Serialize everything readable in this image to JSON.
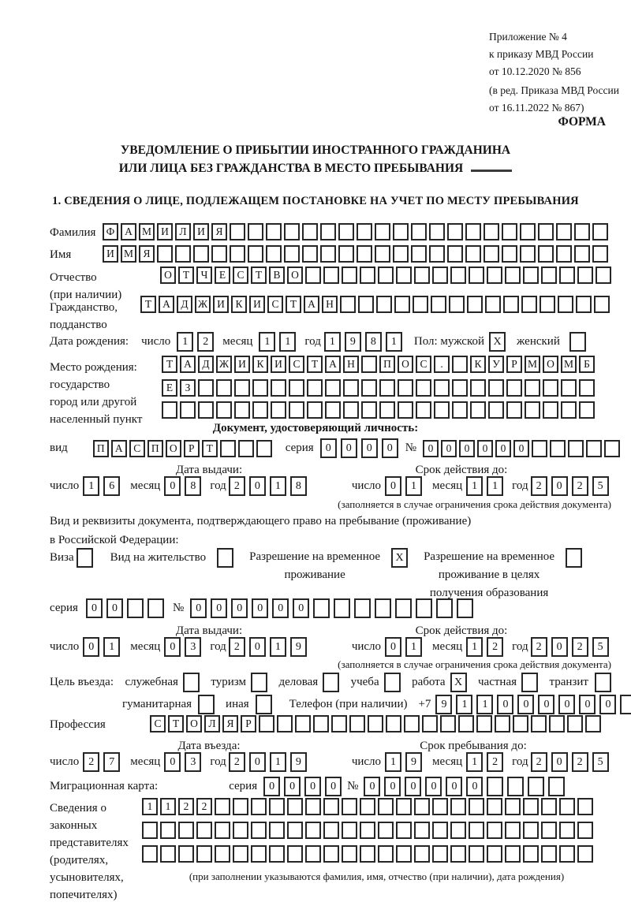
{
  "header": {
    "appendix": [
      "Приложение № 4",
      "к приказу МВД России",
      "от 10.12.2020 № 856"
    ],
    "edition": [
      "(в ред. Приказа МВД России",
      "от 16.11.2022 № 867)"
    ],
    "form_label": "ФОРМА"
  },
  "title": {
    "line1": "УВЕДОМЛЕНИЕ О ПРИБЫТИИ ИНОСТРАННОГО ГРАЖДАНИНА",
    "line2": "ИЛИ ЛИЦА БЕЗ ГРАЖДАНСТВА В МЕСТО ПРЕБЫВАНИЯ"
  },
  "section1_heading": "1. СВЕДЕНИЯ О ЛИЦЕ, ПОДЛЕЖАЩЕМ ПОСТАНОВКЕ НА УЧЕТ ПО МЕСТУ ПРЕБЫВАНИЯ",
  "date_labels": {
    "day": "число",
    "month": "месяц",
    "year": "год"
  },
  "fields": {
    "surname": {
      "label": "Фамилия",
      "value": "ФАМИЛИЯ",
      "cells": 28
    },
    "given_name": {
      "label": "Имя",
      "value": "ИМЯ",
      "cells": 28
    },
    "patronymic": {
      "label": "Отчество",
      "label2": "(при наличии)",
      "value": "ОТЧЕСТВО",
      "cells": 25
    },
    "citizenship": {
      "label": "Гражданство,",
      "label2": "подданство",
      "value": "ТАДЖИКИСТАН",
      "cells": 26
    },
    "birth_date": {
      "label": "Дата рождения:",
      "day": "12",
      "month": "11",
      "year": "1981",
      "sex_label": "Пол: мужской",
      "male_mark": "X",
      "female_label": "женский",
      "female_mark": ""
    },
    "birth_place": {
      "labels": [
        "Место рождения:",
        "государство",
        "город или другой",
        "населенный пункт"
      ],
      "row1": {
        "value": "ТАДЖИКИСТАН ПОС. КУРМОМБ",
        "cells": 24
      },
      "row2": {
        "value": "ЕЗ",
        "cells": 24
      },
      "row3": {
        "value": "",
        "cells": 24
      }
    }
  },
  "identity_doc": {
    "heading": "Документ, удостоверяющий личность:",
    "kind_label": "вид",
    "kind": {
      "value": "ПАСПОРТ",
      "cells": 10
    },
    "series_label": "серия",
    "series": {
      "value": "0000",
      "cells": 4
    },
    "number_label": "№",
    "number": {
      "value": "000000",
      "cells": 11
    },
    "issue_label": "Дата выдачи:",
    "issue": {
      "day": "16",
      "month": "08",
      "year": "2018"
    },
    "expiry_label": "Срок действия до:",
    "expiry": {
      "day": "01",
      "month": "11",
      "year": "2025"
    },
    "note": "(заполняется в случае ограничения срока действия документа)"
  },
  "residence_doc": {
    "intro1": "Вид и реквизиты документа, подтверждающего право на пребывание (проживание)",
    "intro2": "в Российской Федерации:",
    "options": [
      {
        "label": "Виза",
        "mark": ""
      },
      {
        "label": "Вид на жительство",
        "mark": ""
      },
      {
        "lines": [
          "Разрешение на временное",
          "проживание"
        ],
        "mark": "X"
      },
      {
        "lines": [
          "Разрешение на временное",
          "проживание в целях",
          "получения образования"
        ],
        "mark": ""
      }
    ],
    "series_label": "серия",
    "series": {
      "value": "00",
      "cells": 4
    },
    "number_label": "№",
    "number": {
      "value": "000000",
      "cells": 14
    },
    "issue_label": "Дата выдачи:",
    "issue": {
      "day": "01",
      "month": "03",
      "year": "2019"
    },
    "expiry_label": "Срок действия до:",
    "expiry": {
      "day": "01",
      "month": "12",
      "year": "2025"
    },
    "note": "(заполняется в случае ограничения срока действия документа)"
  },
  "entry": {
    "purpose_label": "Цель въезда:",
    "purposes_row1": [
      {
        "label": "служебная",
        "mark": ""
      },
      {
        "label": "туризм",
        "mark": ""
      },
      {
        "label": "деловая",
        "mark": ""
      },
      {
        "label": "учеба",
        "mark": ""
      },
      {
        "label": "работа",
        "mark": "X"
      },
      {
        "label": "частная",
        "mark": ""
      },
      {
        "label": "транзит",
        "mark": ""
      }
    ],
    "purposes_row2": [
      {
        "label": "гуманитарная",
        "mark": ""
      },
      {
        "label": "иная",
        "mark": ""
      }
    ],
    "phone_label": "Телефон (при наличии)",
    "phone_prefix": "+7",
    "phone": {
      "value": "911000000",
      "cells": 10
    },
    "profession_label": "Профессия",
    "profession": {
      "value": "СТОЛЯР",
      "cells": 25
    },
    "entry_date_label": "Дата въезда:",
    "entry_date": {
      "day": "27",
      "month": "03",
      "year": "2019"
    },
    "stay_until_label": "Срок пребывания до:",
    "stay_until": {
      "day": "19",
      "month": "12",
      "year": "2025"
    }
  },
  "migration_card": {
    "label": "Миграционная карта:",
    "series_label": "серия",
    "series": {
      "value": "0000",
      "cells": 4
    },
    "number_label": "№",
    "number": {
      "value": "000000",
      "cells": 10
    }
  },
  "representatives": {
    "labels": [
      "Сведения о",
      "законных",
      "представителях",
      "(родителях,",
      "усыновителях,",
      "попечителях)"
    ],
    "rows": [
      {
        "value": "1122",
        "cells": 25
      },
      {
        "value": "",
        "cells": 25
      },
      {
        "value": "",
        "cells": 25
      }
    ],
    "note": "(при заполнении указываются фамилия, имя, отчество (при наличии), дата рождения)"
  }
}
